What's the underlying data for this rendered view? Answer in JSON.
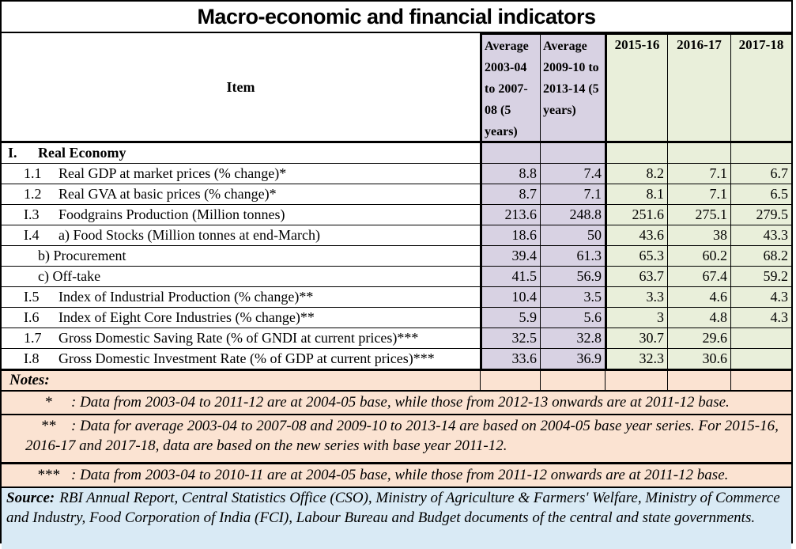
{
  "title": "Macro-economic and financial indicators",
  "colors": {
    "average_column_bg": "#d8d2e3",
    "year_column_bg": "#e9efda",
    "notes_bg": "#fbe3d2",
    "source_bg": "#d9eaf5",
    "border": "#000000"
  },
  "table": {
    "item_header": "Item",
    "column_headers": [
      "Average 2003-04 to 2007-08 (5 years)",
      "Average 2009-10 to 2013-14 (5 years)",
      "2015-16",
      "2016-17",
      "2017-18"
    ],
    "section": {
      "code": "I.",
      "label": "Real Economy"
    },
    "rows": [
      {
        "code": "1.1",
        "item": "Real GDP at market prices (% change)*",
        "values": [
          "8.8",
          "7.4",
          "8.2",
          "7.1",
          "6.7"
        ]
      },
      {
        "code": "1.2",
        "item": "Real GVA at basic prices (% change)*",
        "values": [
          "8.7",
          "7.1",
          "8.1",
          "7.1",
          "6.5"
        ]
      },
      {
        "code": "I.3",
        "item": "Foodgrains Production (Million tonnes)",
        "values": [
          "213.6",
          "248.8",
          "251.6",
          "275.1",
          "279.5"
        ]
      },
      {
        "code": "I.4",
        "item": "a) Food Stocks (Million tonnes at end-March)",
        "values": [
          "18.6",
          "50",
          "43.6",
          "38",
          "43.3"
        ]
      },
      {
        "code": "",
        "item": "b) Procurement",
        "values": [
          "39.4",
          "61.3",
          "65.3",
          "60.2",
          "68.2"
        ]
      },
      {
        "code": "",
        "item": "c) Off-take",
        "values": [
          "41.5",
          "56.9",
          "63.7",
          "67.4",
          "59.2"
        ]
      },
      {
        "code": "I.5",
        "item": "Index of Industrial Production (% change)**",
        "values": [
          "10.4",
          "3.5",
          "3.3",
          "4.6",
          "4.3"
        ]
      },
      {
        "code": "I.6",
        "item": "Index of Eight Core Industries (% change)**",
        "values": [
          "5.9",
          "5.6",
          "3",
          "4.8",
          "4.3"
        ]
      },
      {
        "code": "1.7",
        "item": "Gross Domestic Saving Rate (% of GNDI at current prices)***",
        "values": [
          "32.5",
          "32.8",
          "30.7",
          "29.6",
          ""
        ]
      },
      {
        "code": "I.8",
        "item": "Gross Domestic Investment Rate (% of GDP at current prices)***",
        "values": [
          "33.6",
          "36.9",
          "32.3",
          "30.6",
          ""
        ]
      }
    ]
  },
  "notes": {
    "label": "Notes:",
    "items": [
      {
        "marker": "*",
        "text": ": Data from 2003-04 to 2011-12 are at 2004-05 base, while those from 2012-13 onwards are at 2011-12 base."
      },
      {
        "marker": "**",
        "text": ": Data for average 2003-04 to 2007-08 and 2009-10 to 2013-14 are based on 2004-05 base year series. For 2015-16, 2016-17 and 2017-18, data are based on the new series with base year 2011-12."
      },
      {
        "marker": "***",
        "text": ": Data from 2003-04 to 2010-11 are at 2004-05 base, while those from 2011-12 onwards are at 2011-12 base."
      }
    ]
  },
  "source": {
    "label": "Source:",
    "text": "RBI Annual Report, Central Statistics Office (CSO), Ministry of Agriculture & Farmers' Welfare, Ministry of Commerce and Industry, Food Corporation of India (FCI), Labour Bureau and Budget documents of the central and state governments."
  }
}
